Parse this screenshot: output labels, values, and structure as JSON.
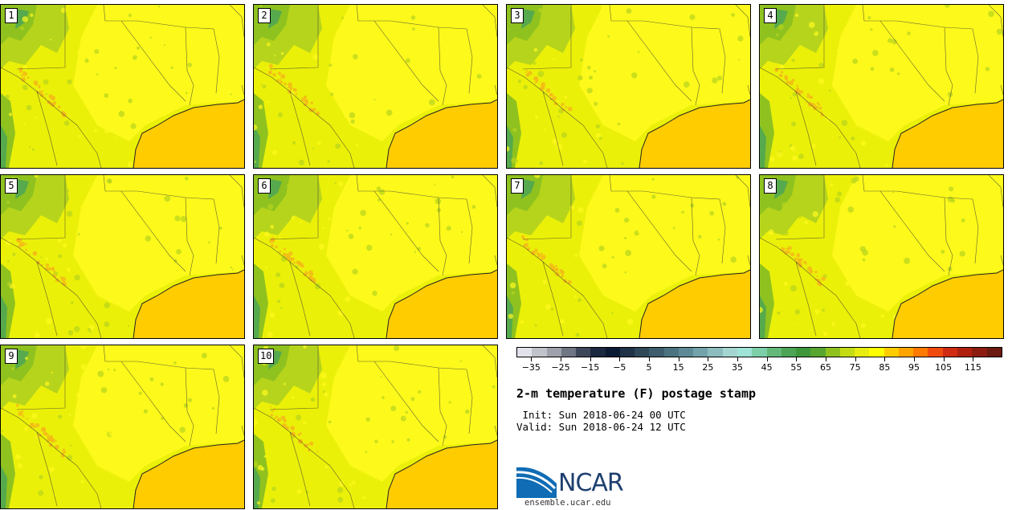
{
  "members": [
    "1",
    "2",
    "3",
    "4",
    "5",
    "6",
    "7",
    "8",
    "9",
    "10"
  ],
  "colorbar": {
    "colors": [
      "#e2e3ea",
      "#c1c3cb",
      "#9ea1ab",
      "#6f7582",
      "#3e4759",
      "#1c2740",
      "#0b1a33",
      "#1f3247",
      "#2f4858",
      "#3d5d6e",
      "#4c7380",
      "#5d8a95",
      "#72a3aa",
      "#8dbcbe",
      "#a4d6d1",
      "#9ee3d6",
      "#7dcfaa",
      "#64b97a",
      "#4ca555",
      "#3e963b",
      "#58a62f",
      "#8fc21f",
      "#c4dc14",
      "#e8ec10",
      "#ffff00",
      "#ffcc00",
      "#ffa400",
      "#ff7a00",
      "#f04a0e",
      "#cf2a12",
      "#b0200f",
      "#8c1c12",
      "#6a1a10"
    ],
    "ticks": [
      "−35",
      "−25",
      "−15",
      "−5",
      "5",
      "15",
      "25",
      "35",
      "45",
      "55",
      "65",
      "75",
      "85",
      "95",
      "105",
      "115"
    ],
    "tick_values": [
      -35,
      -25,
      -15,
      -5,
      5,
      15,
      25,
      35,
      45,
      55,
      65,
      75,
      85,
      95,
      105,
      115
    ],
    "range": [
      -40,
      125
    ]
  },
  "title": "2-m temperature (F) postage stamp",
  "init": " Init: Sun 2018-06-24 00 UTC",
  "valid": "Valid: Sun 2018-06-24 12 UTC",
  "logo": {
    "name": "NCAR",
    "url": "ensemble.ucar.edu"
  },
  "map_colors": {
    "land": "#ebf008",
    "hot": "#fffa1e",
    "warm_orange": "#f5b818",
    "cool_green": "#b6d41c",
    "mid_green": "#8fc21f",
    "dark_green": "#4ca555",
    "gulf": "#ffcc00"
  }
}
